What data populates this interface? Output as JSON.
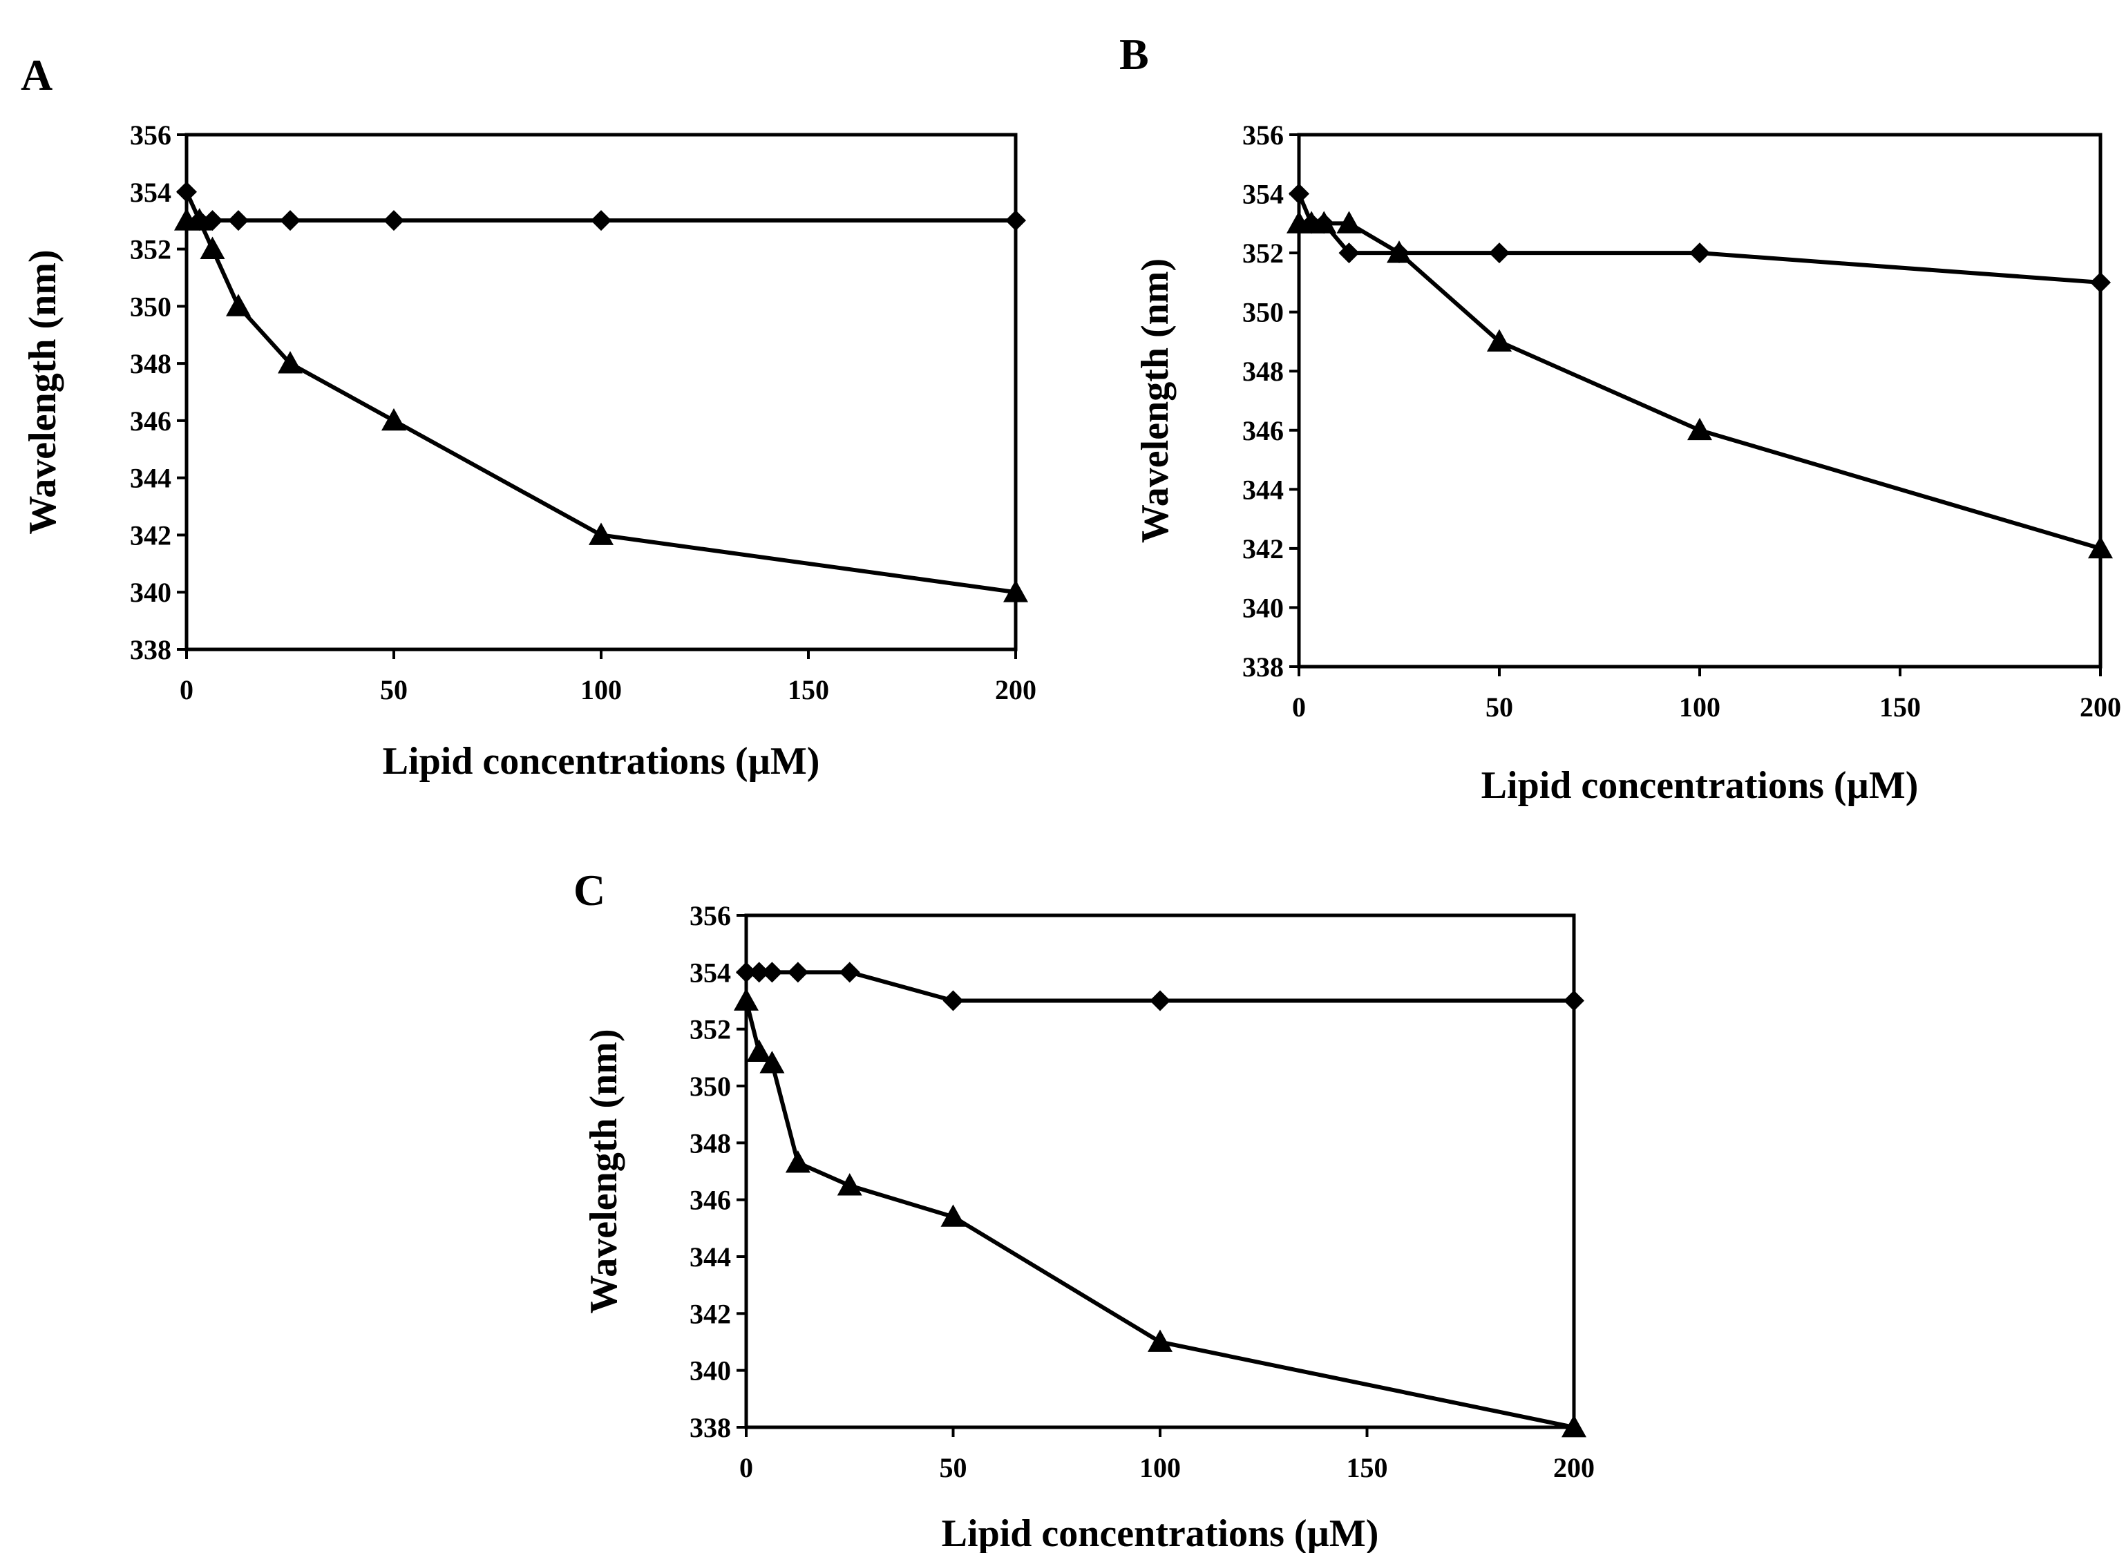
{
  "figure": {
    "panels": [
      "A",
      "B",
      "C"
    ]
  },
  "colors": {
    "line": "#000000",
    "background": "#ffffff"
  },
  "chart_data": [
    {
      "panel": "A",
      "type": "line",
      "title": "",
      "xlabel": "Lipid concentrations (µM)",
      "ylabel": "Wavelength (nm)",
      "xlim": [
        0,
        200
      ],
      "ylim": [
        338,
        356
      ],
      "xticks": [
        0,
        50,
        100,
        150,
        200
      ],
      "yticks": [
        338,
        340,
        342,
        344,
        346,
        348,
        350,
        352,
        354,
        356
      ],
      "grid": false,
      "legend": "none",
      "series": [
        {
          "name": "diamond",
          "marker": "diamond",
          "x": [
            0,
            3.125,
            6.25,
            12.5,
            25,
            50,
            100,
            200
          ],
          "values": [
            354,
            353,
            353,
            353,
            353,
            353,
            353,
            353
          ]
        },
        {
          "name": "triangle",
          "marker": "triangle",
          "x": [
            0,
            3.125,
            6.25,
            12.5,
            25,
            50,
            100,
            200
          ],
          "values": [
            353,
            353,
            352,
            350,
            348,
            346,
            342,
            340
          ]
        }
      ]
    },
    {
      "panel": "B",
      "type": "line",
      "title": "",
      "xlabel": "Lipid concentrations (µM)",
      "ylabel": "Wavelength (nm)",
      "xlim": [
        0,
        200
      ],
      "ylim": [
        338,
        356
      ],
      "xticks": [
        0,
        50,
        100,
        150,
        200
      ],
      "yticks": [
        338,
        340,
        342,
        344,
        346,
        348,
        350,
        352,
        354,
        356
      ],
      "grid": false,
      "legend": "none",
      "series": [
        {
          "name": "diamond",
          "marker": "diamond",
          "x": [
            0,
            3.125,
            6.25,
            12.5,
            25,
            50,
            100,
            200
          ],
          "values": [
            354,
            353,
            353,
            352,
            352,
            352,
            352,
            351
          ]
        },
        {
          "name": "triangle",
          "marker": "triangle",
          "x": [
            0,
            3.125,
            6.25,
            12.5,
            25,
            50,
            100,
            200
          ],
          "values": [
            353,
            353,
            353,
            353,
            352,
            349,
            346,
            342
          ]
        }
      ]
    },
    {
      "panel": "C",
      "type": "line",
      "title": "",
      "xlabel": "Lipid concentrations (µM)",
      "ylabel": "Wavelength (nm)",
      "xlim": [
        0,
        200
      ],
      "ylim": [
        338,
        356
      ],
      "xticks": [
        0,
        50,
        100,
        150,
        200
      ],
      "yticks": [
        338,
        340,
        342,
        344,
        346,
        348,
        350,
        352,
        354,
        356
      ],
      "grid": false,
      "legend": "none",
      "series": [
        {
          "name": "diamond",
          "marker": "diamond",
          "x": [
            0,
            3.125,
            6.25,
            12.5,
            25,
            50,
            100,
            200
          ],
          "values": [
            354,
            354,
            354,
            354,
            354,
            353,
            353,
            353
          ]
        },
        {
          "name": "triangle",
          "marker": "triangle",
          "x": [
            0,
            3.125,
            6.25,
            12.5,
            25,
            50,
            100,
            200
          ],
          "values": [
            353,
            351.2,
            350.8,
            347.3,
            346.5,
            345.4,
            341,
            338
          ]
        }
      ]
    }
  ]
}
